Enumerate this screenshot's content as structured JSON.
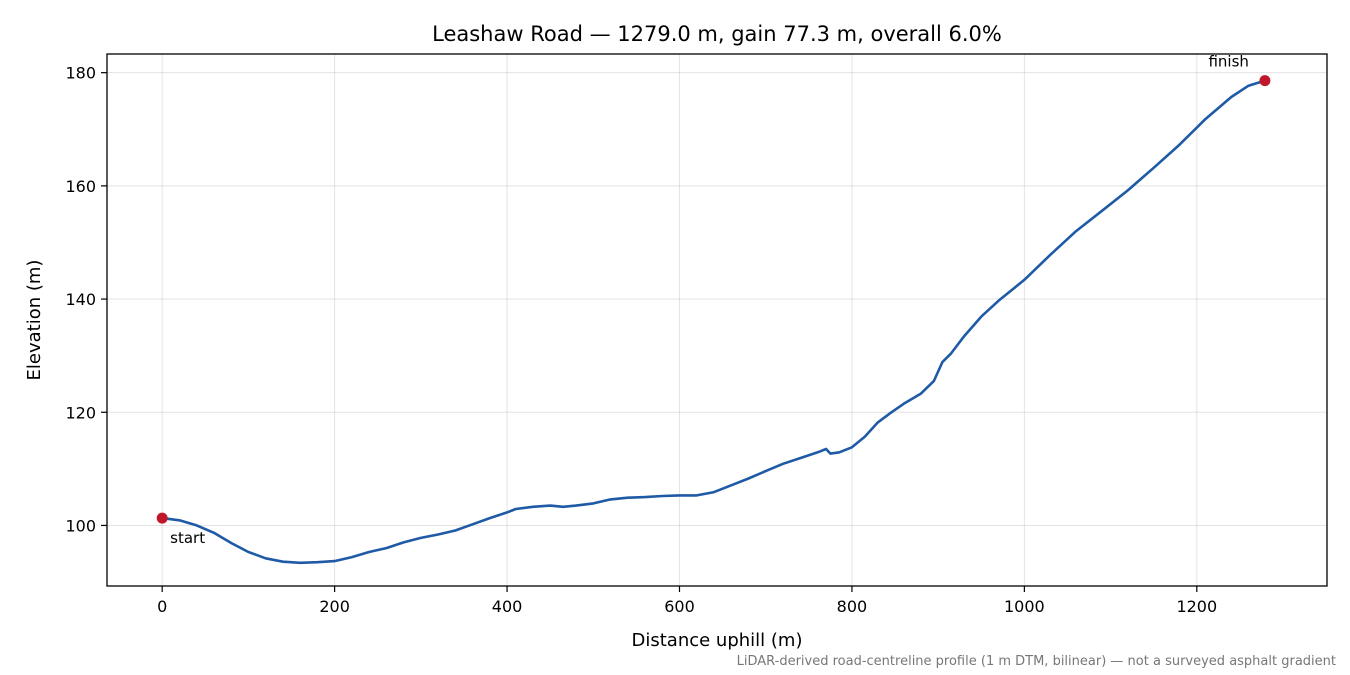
{
  "chart_data": {
    "type": "line",
    "title": "Leashaw Road — 1279.0 m, gain 77.3 m, overall 6.0%",
    "xlabel": "Distance uphill (m)",
    "ylabel": "Elevation (m)",
    "xlim": [
      -64,
      1351
    ],
    "ylim": [
      89.3,
      183.3
    ],
    "xticks": [
      0,
      200,
      400,
      600,
      800,
      1000,
      1200
    ],
    "yticks": [
      100,
      120,
      140,
      160,
      180
    ],
    "grid": true,
    "line_color": "#1f5aa6",
    "marker_color": "#c0182a",
    "footnote": "LiDAR-derived road-centreline profile (1 m DTM, bilinear) — not a surveyed asphalt gradient",
    "series": [
      {
        "x": [
          0,
          20,
          40,
          60,
          80,
          100,
          120,
          140,
          160,
          180,
          200,
          220,
          240,
          260,
          280,
          300,
          320,
          340,
          360,
          380,
          400,
          410,
          430,
          450,
          465,
          480,
          500,
          520,
          540,
          560,
          580,
          600,
          620,
          640,
          660,
          680,
          700,
          720,
          740,
          760,
          770,
          775,
          785,
          800,
          815,
          830,
          845,
          860,
          880,
          895,
          905,
          915,
          930,
          950,
          970,
          1000,
          1030,
          1060,
          1090,
          1120,
          1150,
          1180,
          1210,
          1240,
          1260,
          1279
        ],
        "y": [
          101.3,
          100.9,
          100.0,
          98.7,
          96.9,
          95.3,
          94.2,
          93.6,
          93.4,
          93.5,
          93.7,
          94.4,
          95.3,
          96.0,
          97.0,
          97.8,
          98.4,
          99.1,
          100.2,
          101.3,
          102.3,
          102.9,
          103.3,
          103.5,
          103.3,
          103.5,
          103.9,
          104.6,
          104.9,
          105.0,
          105.2,
          105.3,
          105.3,
          105.9,
          107.1,
          108.3,
          109.6,
          110.9,
          111.9,
          112.9,
          113.5,
          112.7,
          112.9,
          113.8,
          115.7,
          118.2,
          119.9,
          121.5,
          123.3,
          125.5,
          128.9,
          130.4,
          133.4,
          136.9,
          139.7,
          143.4,
          147.8,
          152.0,
          155.6,
          159.2,
          163.2,
          167.3,
          171.8,
          175.7,
          177.7,
          178.6
        ]
      }
    ],
    "annotations": [
      {
        "text": "start",
        "x": 0,
        "y": 101.3
      },
      {
        "text": "finish",
        "x": 1279,
        "y": 178.6
      }
    ]
  }
}
